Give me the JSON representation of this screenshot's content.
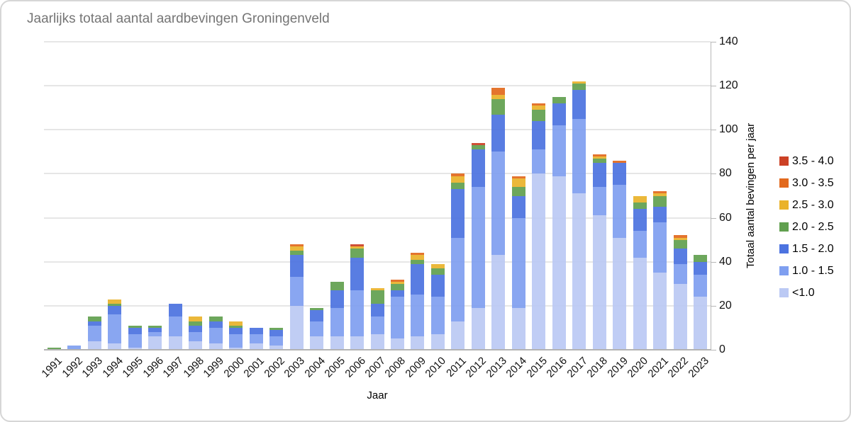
{
  "card": {
    "title": "Jaarlijks totaal aantal aardbevingen Groningenveld"
  },
  "chart_data": {
    "type": "bar",
    "stacked": true,
    "title": "Jaarlijks totaal aantal aardbevingen Groningenveld",
    "xlabel": "Jaar",
    "ylabel": "Totaal aantal bevingen per jaar",
    "ylim": [
      0,
      140
    ],
    "y_ticks": [
      0,
      20,
      40,
      60,
      80,
      100,
      120,
      140
    ],
    "grid": "horizontal",
    "legend_position": "right",
    "legend_order_top_to_bottom": [
      "3.5 - 4.0",
      "3.0 - 3.5",
      "2.5 - 3.0",
      "2.0 - 2.5",
      "1.5 - 2.0",
      "1.0 - 1.5",
      "<1.0"
    ],
    "categories": [
      1991,
      1992,
      1993,
      1994,
      1995,
      1996,
      1997,
      1998,
      1999,
      2000,
      2001,
      2002,
      2003,
      2004,
      2005,
      2006,
      2007,
      2008,
      2009,
      2010,
      2011,
      2012,
      2013,
      2014,
      2015,
      2016,
      2017,
      2018,
      2019,
      2020,
      2021,
      2022,
      2023
    ],
    "series": [
      {
        "name": "<1.0",
        "color": "#bbc9f4",
        "values": [
          0,
          0,
          4,
          3,
          1,
          6,
          6,
          4,
          3,
          1,
          3,
          2,
          20,
          6,
          6,
          6,
          7,
          5,
          6,
          7,
          13,
          19,
          43,
          19,
          80,
          79,
          71,
          61,
          51,
          42,
          35,
          30,
          24
        ]
      },
      {
        "name": "1.0 - 1.5",
        "color": "#7f9ff0",
        "values": [
          0,
          2,
          7,
          13,
          6,
          2,
          9,
          4,
          7,
          6,
          4,
          4,
          13,
          7,
          13,
          21,
          8,
          19,
          19,
          17,
          38,
          55,
          47,
          41,
          11,
          23,
          34,
          13,
          24,
          12,
          23,
          9,
          10
        ]
      },
      {
        "name": "1.5 - 2.0",
        "color": "#4c73e0",
        "values": [
          0,
          0,
          2,
          4,
          3,
          2,
          6,
          3,
          3,
          3,
          3,
          3,
          10,
          5,
          8,
          15,
          6,
          3,
          14,
          10,
          22,
          17,
          17,
          10,
          13,
          10,
          13,
          11,
          10,
          10,
          7,
          7,
          6
        ]
      },
      {
        "name": "2.0 - 2.5",
        "color": "#61a04f",
        "values": [
          1,
          0,
          2,
          1,
          1,
          1,
          0,
          2,
          2,
          1,
          0,
          1,
          2,
          1,
          4,
          4,
          6,
          3,
          2,
          3,
          3,
          2,
          7,
          4,
          5,
          3,
          3,
          2,
          0,
          3,
          5,
          4,
          3
        ]
      },
      {
        "name": "2.5 - 3.0",
        "color": "#eab22a",
        "values": [
          0,
          0,
          0,
          2,
          0,
          0,
          0,
          2,
          0,
          2,
          0,
          0,
          2,
          0,
          0,
          1,
          1,
          1,
          2,
          2,
          3,
          0,
          2,
          4,
          2,
          0,
          1,
          1,
          0,
          3,
          1,
          1,
          0
        ]
      },
      {
        "name": "3.0 - 3.5",
        "color": "#e2691d",
        "values": [
          0,
          0,
          0,
          0,
          0,
          0,
          0,
          0,
          0,
          0,
          0,
          0,
          1,
          0,
          0,
          0,
          0,
          1,
          1,
          0,
          1,
          0,
          3,
          1,
          1,
          0,
          0,
          1,
          1,
          0,
          1,
          1,
          0
        ]
      },
      {
        "name": "3.5 - 4.0",
        "color": "#cc4125",
        "values": [
          0,
          0,
          0,
          0,
          0,
          0,
          0,
          0,
          0,
          0,
          0,
          0,
          0,
          0,
          0,
          1,
          0,
          0,
          0,
          0,
          0,
          1,
          0,
          0,
          0,
          0,
          0,
          0,
          0,
          0,
          0,
          0,
          0
        ]
      }
    ]
  }
}
